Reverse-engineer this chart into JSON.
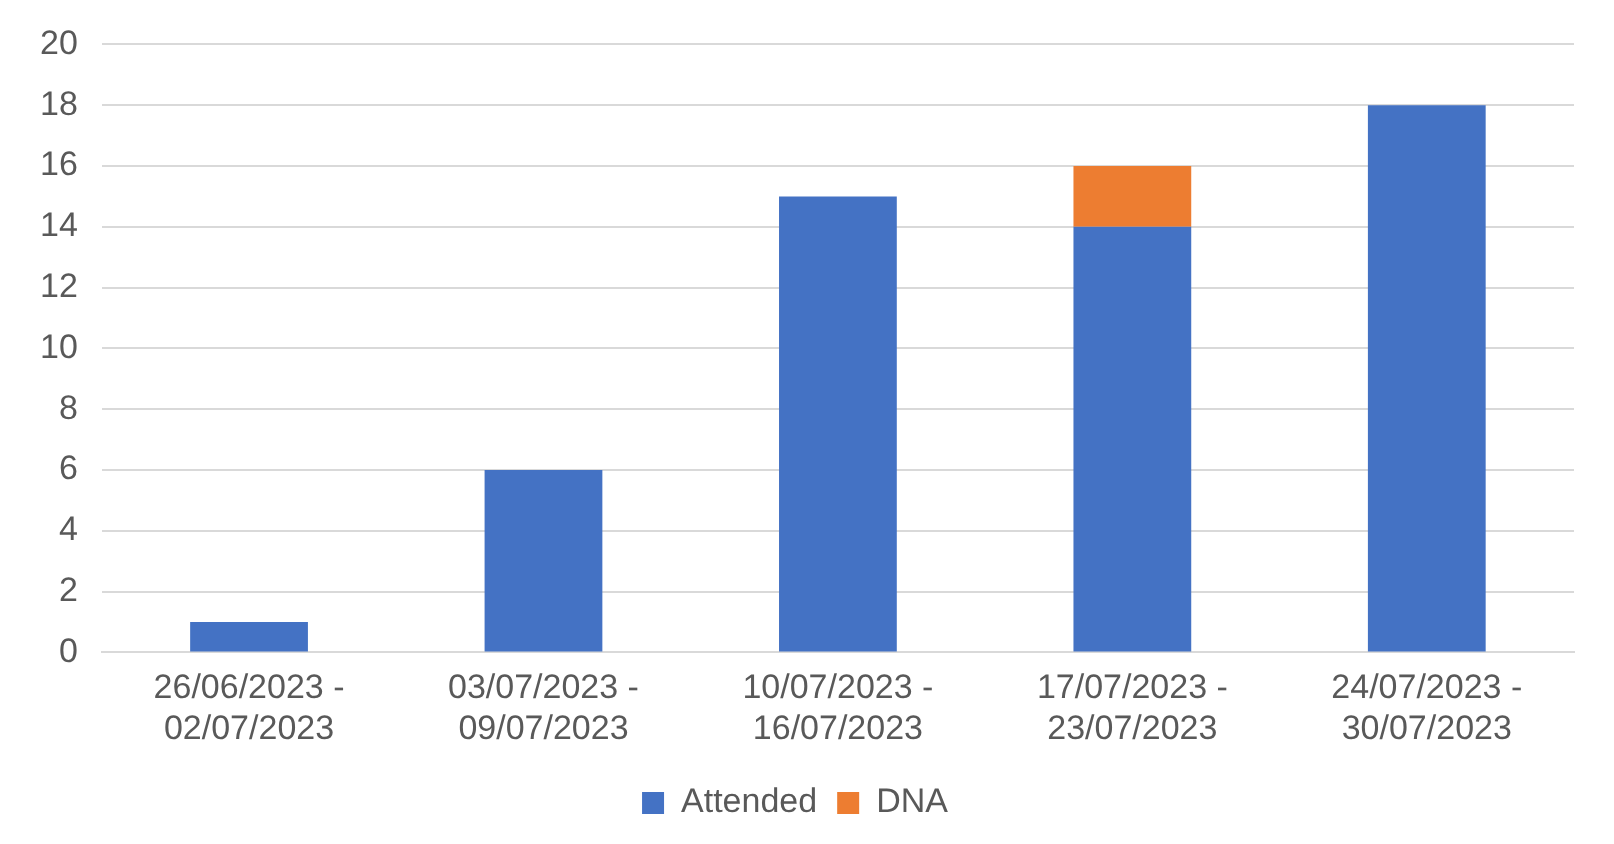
{
  "chart_data": {
    "type": "bar",
    "stacked": true,
    "categories": [
      "26/06/2023 - 02/07/2023",
      "03/07/2023 - 09/07/2023",
      "10/07/2023 - 16/07/2023",
      "17/07/2023 - 23/07/2023",
      "24/07/2023 - 30/07/2023"
    ],
    "series": [
      {
        "name": "Attended",
        "color": "#4472c4",
        "values": [
          1,
          6,
          15,
          14,
          18
        ]
      },
      {
        "name": "DNA",
        "color": "#ed7d31",
        "values": [
          0,
          0,
          0,
          2,
          0
        ]
      }
    ],
    "ylim": [
      0,
      20
    ],
    "yticks": [
      0,
      2,
      4,
      6,
      8,
      10,
      12,
      14,
      16,
      18,
      20
    ],
    "grid": "y",
    "legend": "bottom"
  }
}
